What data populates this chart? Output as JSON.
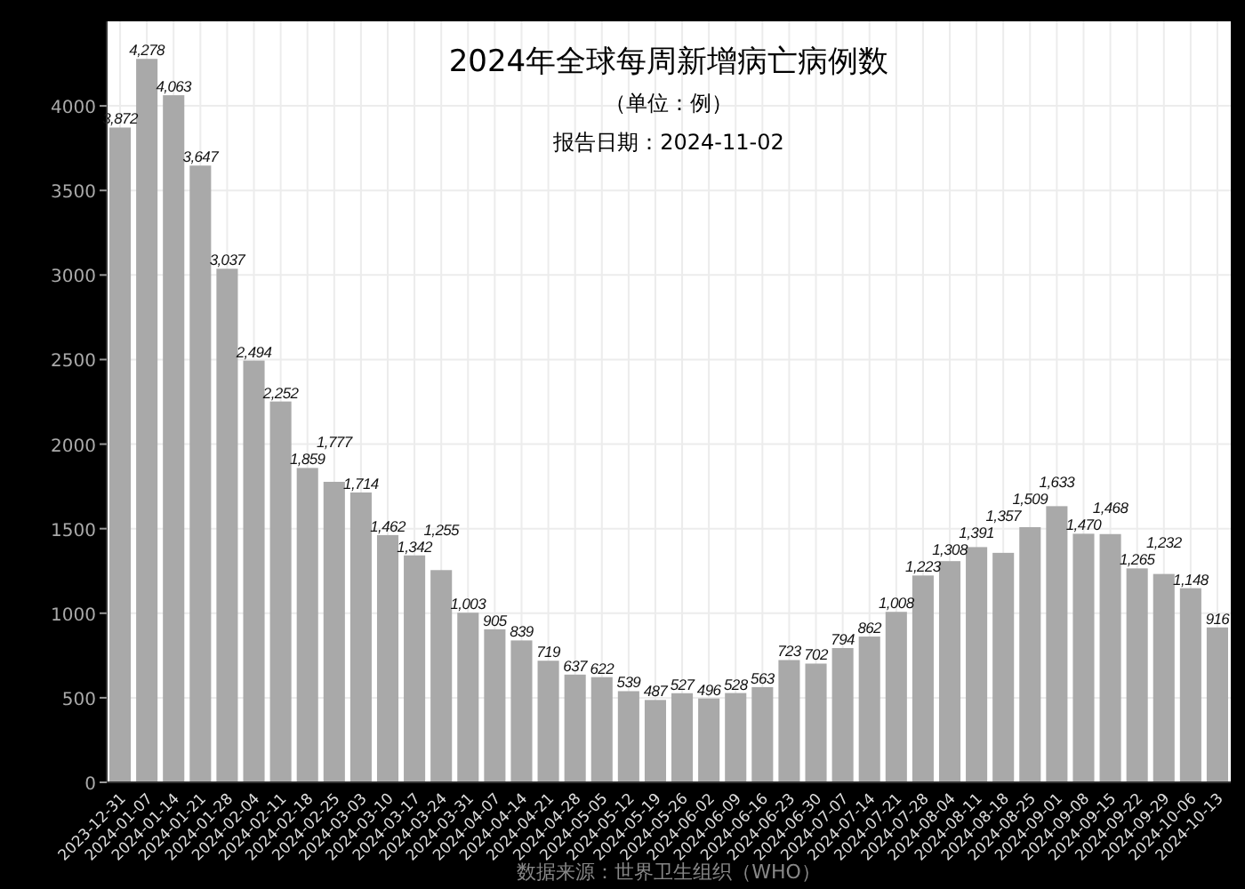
{
  "chart_data": {
    "type": "bar",
    "title": "2024年全球每周新增病亡病例数",
    "subtitle": "（单位：例）",
    "annotations": [
      "报告日期：2024-11-02",
      "数据来源：世界卫生组织（WHO）"
    ],
    "categories": [
      "2023-12-31",
      "2024-01-07",
      "2024-01-14",
      "2024-01-21",
      "2024-01-28",
      "2024-02-04",
      "2024-02-11",
      "2024-02-18",
      "2024-02-25",
      "2024-03-03",
      "2024-03-10",
      "2024-03-17",
      "2024-03-24",
      "2024-03-31",
      "2024-04-07",
      "2024-04-14",
      "2024-04-21",
      "2024-04-28",
      "2024-05-05",
      "2024-05-12",
      "2024-05-19",
      "2024-05-26",
      "2024-06-02",
      "2024-06-09",
      "2024-06-16",
      "2024-06-23",
      "2024-06-30",
      "2024-07-07",
      "2024-07-14",
      "2024-07-21",
      "2024-07-28",
      "2024-08-04",
      "2024-08-11",
      "2024-08-18",
      "2024-08-25",
      "2024-09-01",
      "2024-09-08",
      "2024-09-15",
      "2024-09-22",
      "2024-09-29",
      "2024-10-06",
      "2024-10-13"
    ],
    "values": [
      3872,
      4278,
      4063,
      3647,
      3037,
      2494,
      2252,
      1859,
      1777,
      1714,
      1462,
      1342,
      1255,
      1003,
      905,
      839,
      719,
      637,
      622,
      539,
      487,
      527,
      496,
      528,
      563,
      723,
      702,
      794,
      862,
      1008,
      1223,
      1308,
      1391,
      1357,
      1509,
      1633,
      1470,
      1468,
      1265,
      1232,
      1148,
      916
    ],
    "value_labels": [
      "3,872",
      "4,278",
      "4,063",
      "3,647",
      "3,037",
      "2,494",
      "2,252",
      "1,859",
      "1,777",
      "1,714",
      "1,462",
      "1,342",
      "1,255",
      "1,003",
      "905",
      "839",
      "719",
      "637",
      "622",
      "539",
      "487",
      "527",
      "496",
      "528",
      "563",
      "723",
      "702",
      "794",
      "862",
      "1,008",
      "1,223",
      "1,308",
      "1,391",
      "1,357",
      "1,509",
      "1,633",
      "1,470",
      "1,468",
      "1,265",
      "1,232",
      "1,148",
      "916"
    ],
    "color": "#a9a9a9",
    "grid": true,
    "ylim": [
      0,
      4500
    ],
    "yticks": [
      0,
      500,
      1000,
      1500,
      2000,
      2500,
      3000,
      3500,
      4000
    ]
  }
}
